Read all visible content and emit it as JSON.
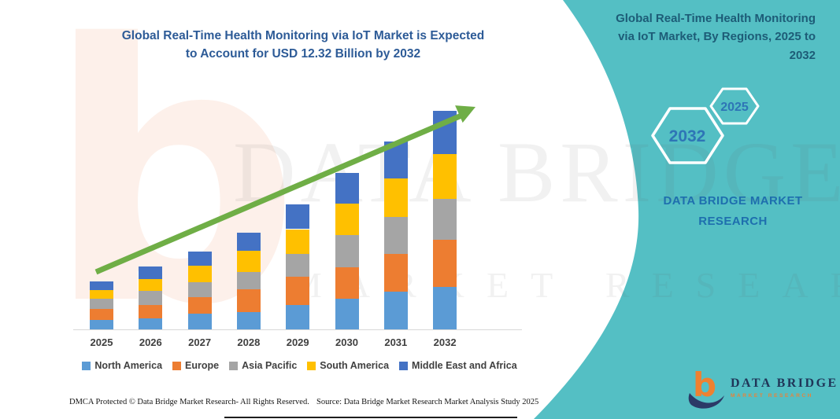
{
  "header": {
    "title_line1": "Global Real-Time Health Monitoring via IoT Market is Expected",
    "title_line2": "to Account for USD 12.32 Billion by 2032"
  },
  "side_panel": {
    "heading": "Global Real-Time Health Monitoring via IoT Market, By Regions, 2025 to 2032",
    "hexagons": [
      {
        "label": "2032",
        "size": "large"
      },
      {
        "label": "2025",
        "size": "small"
      }
    ],
    "brand_line1": "DATA BRIDGE MARKET",
    "brand_line2": "RESEARCH",
    "panel_color": "#54BFC4"
  },
  "chart_data": {
    "type": "bar",
    "stacked": true,
    "unit": "USD Billion",
    "title": "Global Real-Time Health Monitoring via IoT Market is Expected to Account for USD 12.32 Billion by 2032",
    "categories": [
      "2025",
      "2026",
      "2027",
      "2028",
      "2029",
      "2030",
      "2031",
      "2032"
    ],
    "series": [
      {
        "name": "North America",
        "color": "#5B9BD5",
        "values": [
          0.55,
          0.64,
          0.87,
          0.96,
          1.36,
          1.74,
          2.12,
          2.4
        ]
      },
      {
        "name": "Europe",
        "color": "#ED7D31",
        "values": [
          0.62,
          0.73,
          0.93,
          1.32,
          1.63,
          1.78,
          2.15,
          2.67
        ]
      },
      {
        "name": "Asia Pacific",
        "color": "#A5A5A5",
        "values": [
          0.55,
          0.79,
          0.87,
          0.95,
          1.26,
          1.78,
          2.08,
          2.3
        ]
      },
      {
        "name": "South America",
        "color": "#FFC000",
        "values": [
          0.5,
          0.66,
          0.9,
          1.19,
          1.4,
          1.78,
          2.15,
          2.52
        ]
      },
      {
        "name": "Middle East and Africa",
        "color": "#4472C4",
        "values": [
          0.48,
          0.73,
          0.82,
          1.03,
          1.4,
          1.74,
          2.09,
          2.43
        ]
      }
    ],
    "totals": [
      2.7,
      3.55,
      4.39,
      5.45,
      7.05,
      8.82,
      10.59,
      12.32
    ],
    "xlabel": "",
    "ylabel": "",
    "y_axis_visible": false,
    "grid": false,
    "legend_position": "bottom",
    "annotations": [
      "green upward trend arrow across bars"
    ],
    "arrow_color": "#6FAE46"
  },
  "watermark": {
    "letter": "b",
    "line1": "DATA BRIDGE",
    "line2": "MARKET RESEARCH"
  },
  "logo": {
    "title": "DATA BRIDGE",
    "subtitle": "MARKET RESEARCH"
  },
  "footer": {
    "left": "DMCA Protected © Data Bridge Market Research-  All Rights Reserved.",
    "right": "Source: Data Bridge Market Research  Market Analysis Study 2025"
  }
}
